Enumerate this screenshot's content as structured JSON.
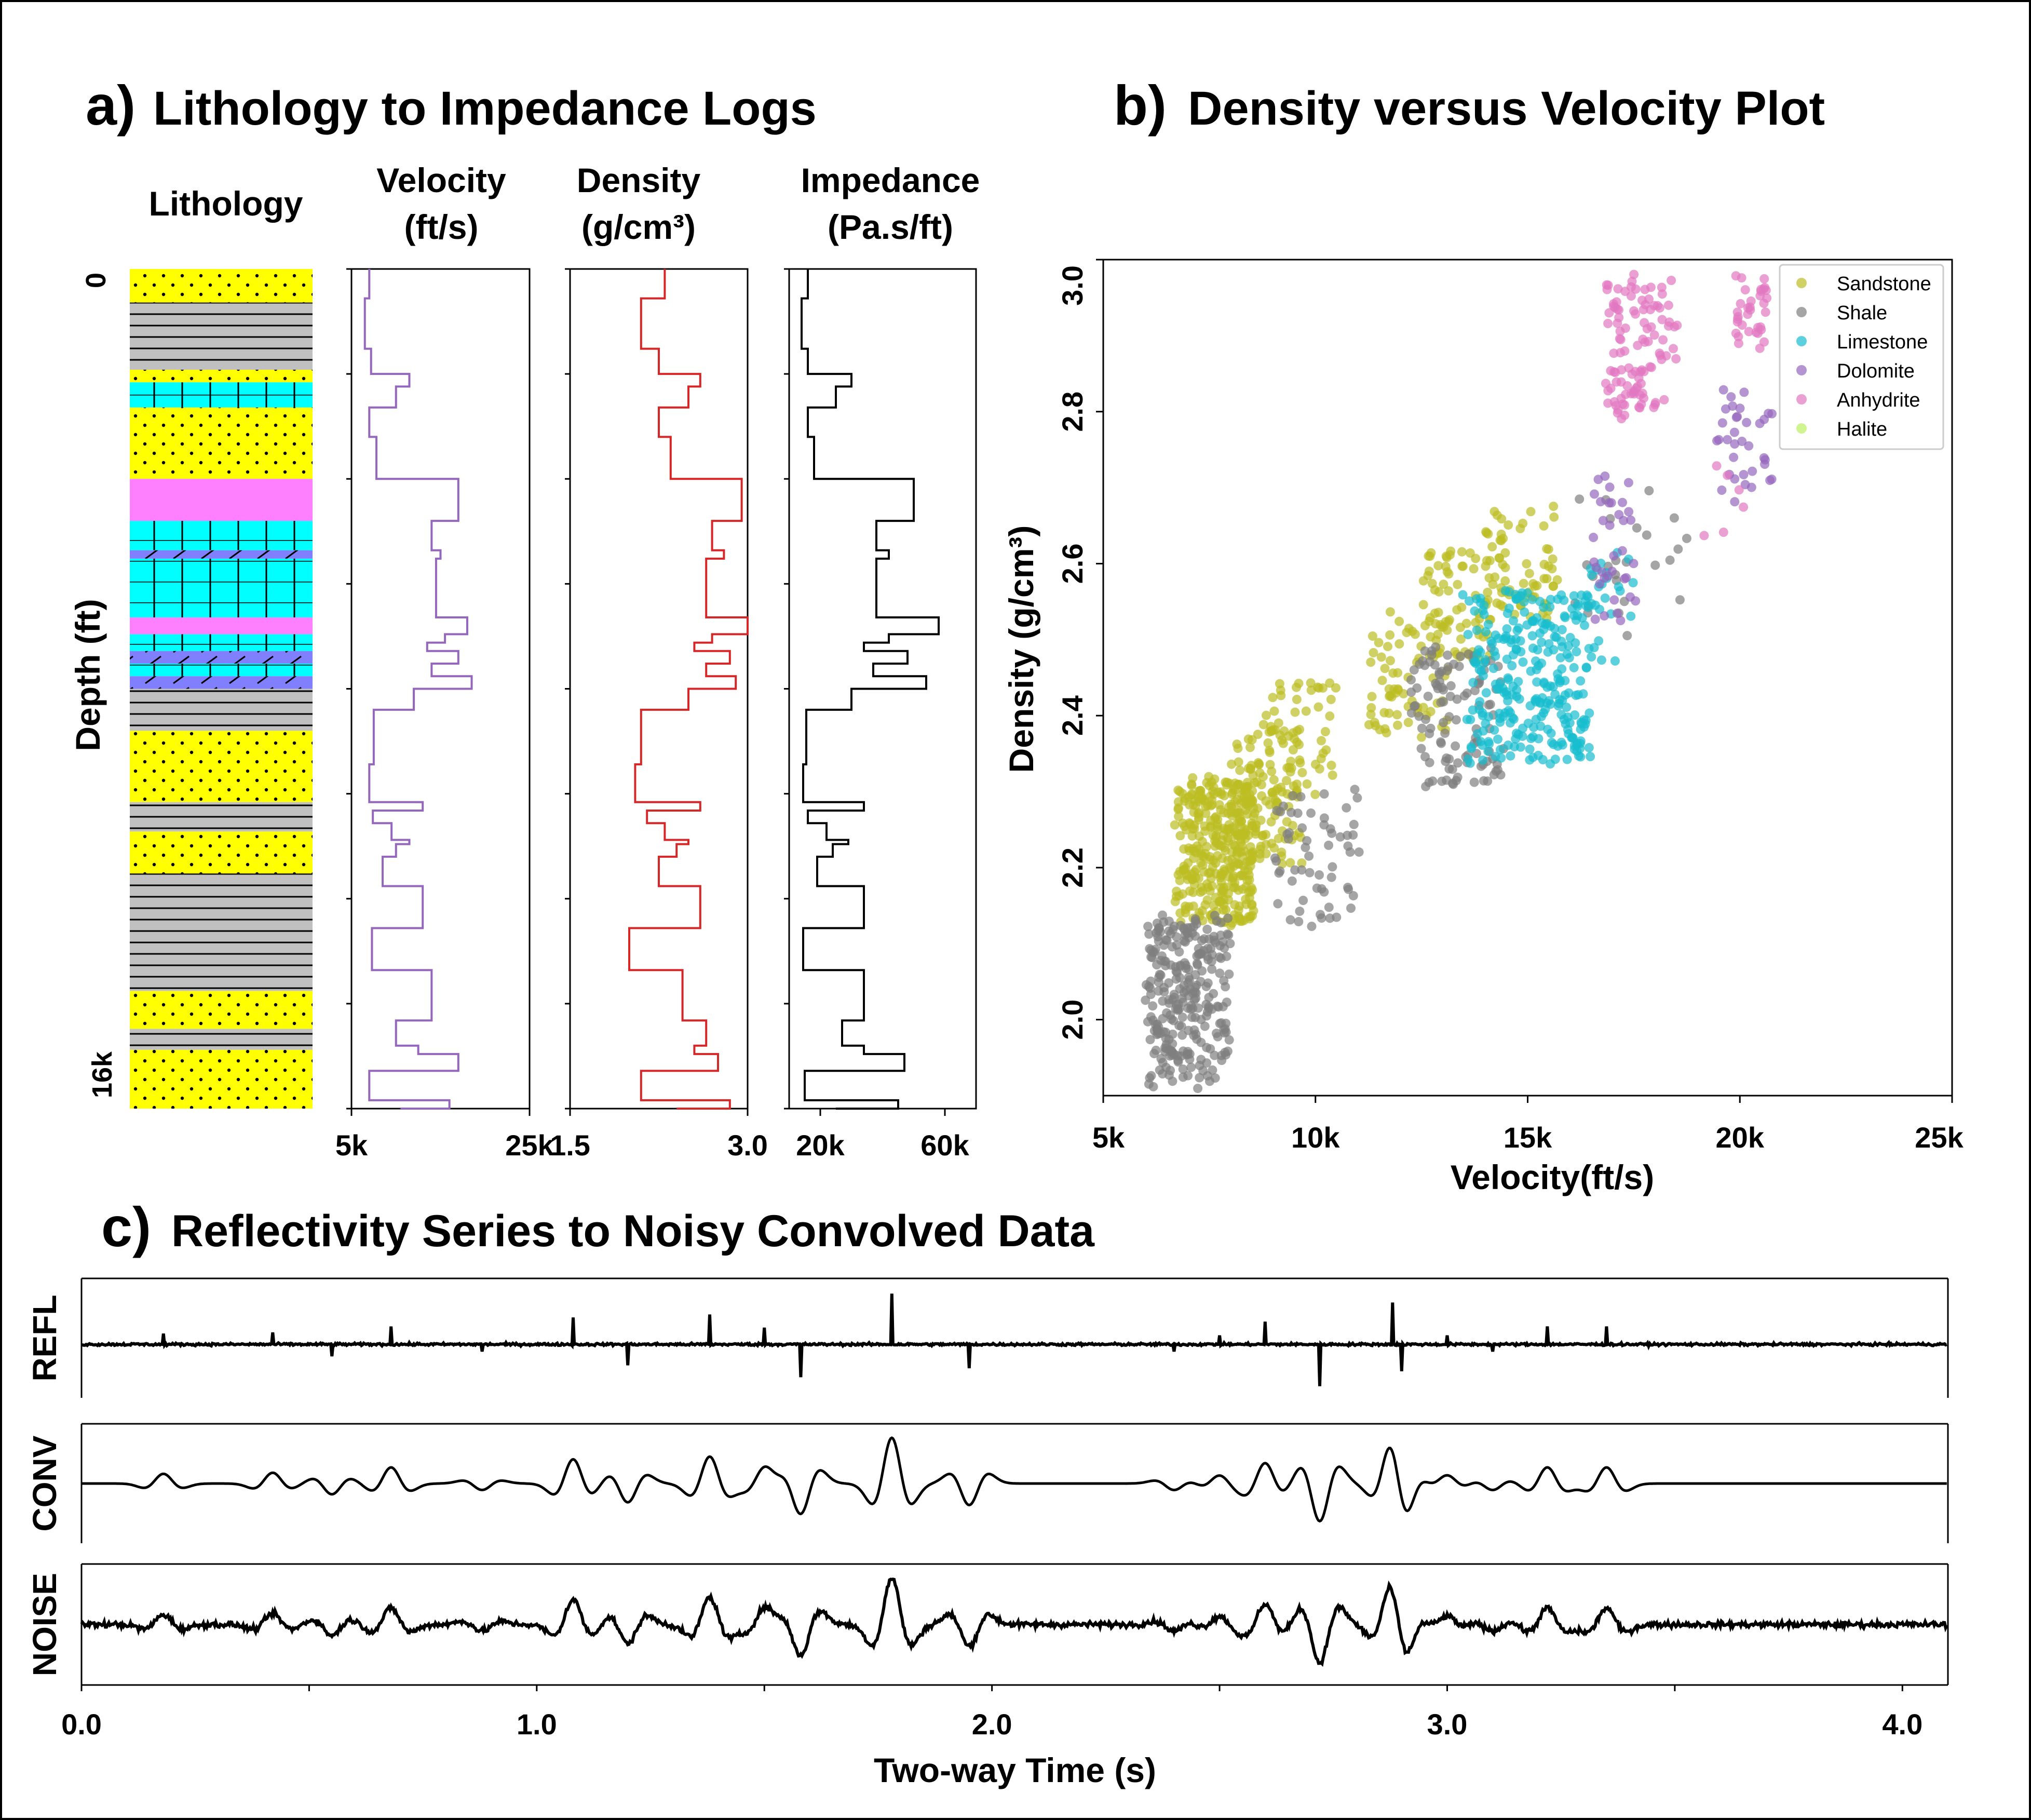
{
  "panel_a": {
    "letter": "a)",
    "title": "Lithology to Impedance Logs",
    "depth_label": "Depth (ft)",
    "depth_ticks": [
      "0",
      "16k"
    ],
    "lithology_header": "Lithology",
    "lithology_layers": [
      {
        "from": 0.0,
        "to": 0.04,
        "lith": "Sandstone"
      },
      {
        "from": 0.04,
        "to": 0.12,
        "lith": "Shale"
      },
      {
        "from": 0.12,
        "to": 0.135,
        "lith": "Sandstone"
      },
      {
        "from": 0.135,
        "to": 0.165,
        "lith": "Limestone"
      },
      {
        "from": 0.165,
        "to": 0.25,
        "lith": "Sandstone"
      },
      {
        "from": 0.25,
        "to": 0.3,
        "lith": "Anhydrite"
      },
      {
        "from": 0.3,
        "to": 0.335,
        "lith": "Limestone"
      },
      {
        "from": 0.335,
        "to": 0.345,
        "lith": "Dolomite"
      },
      {
        "from": 0.345,
        "to": 0.415,
        "lith": "Limestone"
      },
      {
        "from": 0.415,
        "to": 0.435,
        "lith": "Anhydrite"
      },
      {
        "from": 0.435,
        "to": 0.455,
        "lith": "Limestone"
      },
      {
        "from": 0.455,
        "to": 0.47,
        "lith": "Dolomite"
      },
      {
        "from": 0.47,
        "to": 0.485,
        "lith": "Limestone"
      },
      {
        "from": 0.485,
        "to": 0.5,
        "lith": "Dolomite"
      },
      {
        "from": 0.5,
        "to": 0.55,
        "lith": "Shale"
      },
      {
        "from": 0.55,
        "to": 0.635,
        "lith": "Sandstone"
      },
      {
        "from": 0.635,
        "to": 0.67,
        "lith": "Shale"
      },
      {
        "from": 0.67,
        "to": 0.72,
        "lith": "Sandstone"
      },
      {
        "from": 0.72,
        "to": 0.86,
        "lith": "Shale"
      },
      {
        "from": 0.86,
        "to": 0.905,
        "lith": "Sandstone"
      },
      {
        "from": 0.905,
        "to": 0.93,
        "lith": "Shale"
      },
      {
        "from": 0.93,
        "to": 1.0,
        "lith": "Sandstone"
      }
    ],
    "logs": [
      {
        "key": "velocity",
        "header": [
          "Velocity",
          "(ft/s)"
        ],
        "color": "#9467bd",
        "xlim": [
          5000,
          25000
        ],
        "ticks": [
          {
            "v": 5000,
            "label": "5k"
          },
          {
            "v": 25000,
            "label": "25k"
          }
        ],
        "steps": [
          [
            0.0,
            7000
          ],
          [
            0.035,
            6500
          ],
          [
            0.095,
            7200
          ],
          [
            0.125,
            11500
          ],
          [
            0.14,
            10000
          ],
          [
            0.165,
            7000
          ],
          [
            0.2,
            7800
          ],
          [
            0.25,
            17000
          ],
          [
            0.3,
            14000
          ],
          [
            0.335,
            15000
          ],
          [
            0.345,
            14500
          ],
          [
            0.415,
            18000
          ],
          [
            0.435,
            15500
          ],
          [
            0.445,
            13500
          ],
          [
            0.455,
            17000
          ],
          [
            0.47,
            14000
          ],
          [
            0.485,
            18500
          ],
          [
            0.5,
            12000
          ],
          [
            0.525,
            7500
          ],
          [
            0.59,
            7000
          ],
          [
            0.635,
            13000
          ],
          [
            0.645,
            7400
          ],
          [
            0.66,
            9500
          ],
          [
            0.68,
            11500
          ],
          [
            0.685,
            10000
          ],
          [
            0.7,
            8500
          ],
          [
            0.735,
            13000
          ],
          [
            0.785,
            7300
          ],
          [
            0.835,
            14000
          ],
          [
            0.895,
            10000
          ],
          [
            0.925,
            12500
          ],
          [
            0.935,
            17000
          ],
          [
            0.955,
            7000
          ],
          [
            0.99,
            16000
          ],
          [
            1.0,
            10500
          ]
        ]
      },
      {
        "key": "density",
        "header": [
          "Density",
          "(g/cm³)"
        ],
        "color": "#d62728",
        "xlim": [
          1.5,
          3.0
        ],
        "ticks": [
          {
            "v": 1.5,
            "label": "1.5"
          },
          {
            "v": 3.0,
            "label": "3.0"
          }
        ],
        "steps": [
          [
            0.0,
            2.3
          ],
          [
            0.035,
            2.1
          ],
          [
            0.095,
            2.25
          ],
          [
            0.125,
            2.6
          ],
          [
            0.14,
            2.5
          ],
          [
            0.165,
            2.25
          ],
          [
            0.2,
            2.35
          ],
          [
            0.25,
            2.95
          ],
          [
            0.3,
            2.7
          ],
          [
            0.335,
            2.8
          ],
          [
            0.345,
            2.65
          ],
          [
            0.415,
            3.0
          ],
          [
            0.435,
            2.7
          ],
          [
            0.445,
            2.55
          ],
          [
            0.455,
            2.85
          ],
          [
            0.47,
            2.65
          ],
          [
            0.485,
            2.9
          ],
          [
            0.5,
            2.5
          ],
          [
            0.525,
            2.1
          ],
          [
            0.59,
            2.05
          ],
          [
            0.635,
            2.6
          ],
          [
            0.645,
            2.15
          ],
          [
            0.66,
            2.3
          ],
          [
            0.68,
            2.5
          ],
          [
            0.685,
            2.4
          ],
          [
            0.7,
            2.25
          ],
          [
            0.735,
            2.6
          ],
          [
            0.785,
            2.0
          ],
          [
            0.835,
            2.45
          ],
          [
            0.895,
            2.65
          ],
          [
            0.925,
            2.55
          ],
          [
            0.935,
            2.75
          ],
          [
            0.955,
            2.1
          ],
          [
            0.99,
            2.85
          ],
          [
            1.0,
            2.4
          ]
        ]
      },
      {
        "key": "impedance",
        "header": [
          "Impedance",
          "(Pa.s/ft)"
        ],
        "color": "#000000",
        "xlim": [
          10000,
          70000
        ],
        "ticks": [
          {
            "v": 20000,
            "label": "20k"
          },
          {
            "v": 60000,
            "label": "60k"
          }
        ],
        "steps": [
          [
            0.0,
            16000
          ],
          [
            0.035,
            14000
          ],
          [
            0.095,
            16000
          ],
          [
            0.125,
            30000
          ],
          [
            0.14,
            25000
          ],
          [
            0.165,
            16000
          ],
          [
            0.2,
            18000
          ],
          [
            0.25,
            50000
          ],
          [
            0.3,
            38000
          ],
          [
            0.335,
            42000
          ],
          [
            0.345,
            38000
          ],
          [
            0.415,
            58000
          ],
          [
            0.435,
            42000
          ],
          [
            0.445,
            34000
          ],
          [
            0.455,
            48000
          ],
          [
            0.47,
            37000
          ],
          [
            0.485,
            54000
          ],
          [
            0.5,
            30000
          ],
          [
            0.525,
            15500
          ],
          [
            0.59,
            14500
          ],
          [
            0.635,
            34000
          ],
          [
            0.645,
            16000
          ],
          [
            0.66,
            22000
          ],
          [
            0.68,
            29000
          ],
          [
            0.685,
            24000
          ],
          [
            0.7,
            19000
          ],
          [
            0.735,
            34000
          ],
          [
            0.785,
            14500
          ],
          [
            0.835,
            34000
          ],
          [
            0.895,
            27000
          ],
          [
            0.925,
            34000
          ],
          [
            0.935,
            47000
          ],
          [
            0.955,
            15000
          ],
          [
            0.99,
            45000
          ],
          [
            1.0,
            25000
          ]
        ]
      }
    ]
  },
  "panel_b": {
    "letter": "b)",
    "title": "Density versus Velocity Plot",
    "xlabel": "Velocity(ft/s)",
    "ylabel": "Density (g/cm³)",
    "xlim": [
      5000,
      25000
    ],
    "ylim": [
      1.9,
      3.0
    ],
    "xticks": [
      {
        "v": 5000,
        "label": "5k"
      },
      {
        "v": 10000,
        "label": "10k"
      },
      {
        "v": 15000,
        "label": "15k"
      },
      {
        "v": 20000,
        "label": "20k"
      },
      {
        "v": 25000,
        "label": "25k"
      }
    ],
    "yticks": [
      {
        "v": 2.0,
        "label": "2.0"
      },
      {
        "v": 2.2,
        "label": "2.2"
      },
      {
        "v": 2.4,
        "label": "2.4"
      },
      {
        "v": 2.6,
        "label": "2.6"
      },
      {
        "v": 2.8,
        "label": "2.8"
      },
      {
        "v": 3.0,
        "label": "3.0"
      }
    ],
    "legend_position": "top-right"
  },
  "chart_data": [
    {
      "type": "line",
      "panel": "a",
      "ylabel": "Depth (ft)",
      "ylim": [
        0,
        16000
      ],
      "series": [
        {
          "name": "Velocity (ft/s)",
          "xlim": [
            5000,
            25000
          ]
        },
        {
          "name": "Density (g/cm³)",
          "xlim": [
            1.5,
            3.0
          ]
        },
        {
          "name": "Impedance (Pa.s/ft)",
          "xlim": [
            10000,
            70000
          ]
        }
      ]
    },
    {
      "type": "scatter",
      "panel": "b",
      "title": "Density versus Velocity Plot",
      "xlabel": "Velocity(ft/s)",
      "ylabel": "Density (g/cm³)",
      "xlim": [
        5000,
        25000
      ],
      "ylim": [
        1.9,
        3.0
      ],
      "series": [
        {
          "name": "Sandstone",
          "color": "#bcbd22",
          "clusters": [
            {
              "x": [
                6700,
                8600
              ],
              "y": [
                2.12,
                2.32
              ],
              "n": 340
            },
            {
              "x": [
                8000,
                9700
              ],
              "y": [
                2.2,
                2.39
              ],
              "n": 120
            },
            {
              "x": [
                8600,
                10500
              ],
              "y": [
                2.28,
                2.45
              ],
              "n": 50
            },
            {
              "x": [
                11200,
                13200
              ],
              "y": [
                2.37,
                2.54
              ],
              "n": 70
            },
            {
              "x": [
                12500,
                14200
              ],
              "y": [
                2.47,
                2.62
              ],
              "n": 70
            },
            {
              "x": [
                13900,
                15800
              ],
              "y": [
                2.52,
                2.68
              ],
              "n": 70
            }
          ]
        },
        {
          "name": "Shale",
          "color": "#7f7f7f",
          "clusters": [
            {
              "x": [
                6000,
                8000
              ],
              "y": [
                1.91,
                2.14
              ],
              "n": 280
            },
            {
              "x": [
                9000,
                11100
              ],
              "y": [
                2.12,
                2.32
              ],
              "n": 60
            },
            {
              "x": [
                12200,
                14500
              ],
              "y": [
                2.3,
                2.5
              ],
              "n": 110
            },
            {
              "x": [
                16000,
                19000
              ],
              "y": [
                2.5,
                2.7
              ],
              "n": 25
            }
          ]
        },
        {
          "name": "Limestone",
          "color": "#17becf",
          "clusters": [
            {
              "x": [
                13500,
                16500
              ],
              "y": [
                2.33,
                2.57
              ],
              "n": 280
            },
            {
              "x": [
                16400,
                17600
              ],
              "y": [
                2.45,
                2.64
              ],
              "n": 25
            }
          ]
        },
        {
          "name": "Dolomite",
          "color": "#9467bd",
          "clusters": [
            {
              "x": [
                16500,
                17600
              ],
              "y": [
                2.52,
                2.72
              ],
              "n": 35
            },
            {
              "x": [
                19400,
                20800
              ],
              "y": [
                2.68,
                2.84
              ],
              "n": 35
            }
          ]
        },
        {
          "name": "Anhydrite",
          "color": "#e377c2",
          "clusters": [
            {
              "x": [
                16800,
                18600
              ],
              "y": [
                2.78,
                2.98
              ],
              "n": 110
            },
            {
              "x": [
                19900,
                20700
              ],
              "y": [
                2.88,
                2.99
              ],
              "n": 35
            },
            {
              "x": [
                19000,
                20200
              ],
              "y": [
                2.63,
                2.73
              ],
              "n": 6
            }
          ]
        },
        {
          "name": "Halite",
          "color": "#bcf060",
          "clusters": []
        }
      ]
    },
    {
      "type": "line",
      "panel": "c",
      "title": "Reflectivity Series to Noisy Convolved Data",
      "xlabel": "Two-way Time (s)",
      "xlim": [
        0,
        4.1
      ],
      "xticks": [
        0.0,
        1.0,
        2.0,
        3.0,
        4.0
      ],
      "spikes": [
        [
          0.18,
          0.18
        ],
        [
          0.42,
          0.2
        ],
        [
          0.55,
          -0.2
        ],
        [
          0.68,
          0.3
        ],
        [
          0.88,
          -0.12
        ],
        [
          1.08,
          0.45
        ],
        [
          1.2,
          -0.35
        ],
        [
          1.38,
          0.5
        ],
        [
          1.5,
          0.28
        ],
        [
          1.58,
          -0.55
        ],
        [
          1.78,
          0.85
        ],
        [
          1.95,
          -0.4
        ],
        [
          2.4,
          -0.12
        ],
        [
          2.5,
          0.15
        ],
        [
          2.6,
          0.38
        ],
        [
          2.72,
          -0.7
        ],
        [
          2.88,
          0.7
        ],
        [
          2.9,
          -0.45
        ],
        [
          3.0,
          0.15
        ],
        [
          3.1,
          -0.12
        ],
        [
          3.22,
          0.3
        ],
        [
          3.35,
          0.3
        ]
      ],
      "series": [
        {
          "name": "REFL"
        },
        {
          "name": "CONV"
        },
        {
          "name": "NOISE"
        }
      ]
    }
  ],
  "panel_c": {
    "letter": "c)",
    "title": "Reflectivity Series to Noisy Convolved Data",
    "xlabel": "Two-way Time (s)",
    "xticks": [
      {
        "v": 0.0,
        "label": "0.0"
      },
      {
        "v": 1.0,
        "label": "1.0"
      },
      {
        "v": 2.0,
        "label": "2.0"
      },
      {
        "v": 3.0,
        "label": "3.0"
      },
      {
        "v": 4.0,
        "label": "4.0"
      }
    ],
    "traces": [
      "REFL",
      "CONV",
      "NOISE"
    ]
  }
}
